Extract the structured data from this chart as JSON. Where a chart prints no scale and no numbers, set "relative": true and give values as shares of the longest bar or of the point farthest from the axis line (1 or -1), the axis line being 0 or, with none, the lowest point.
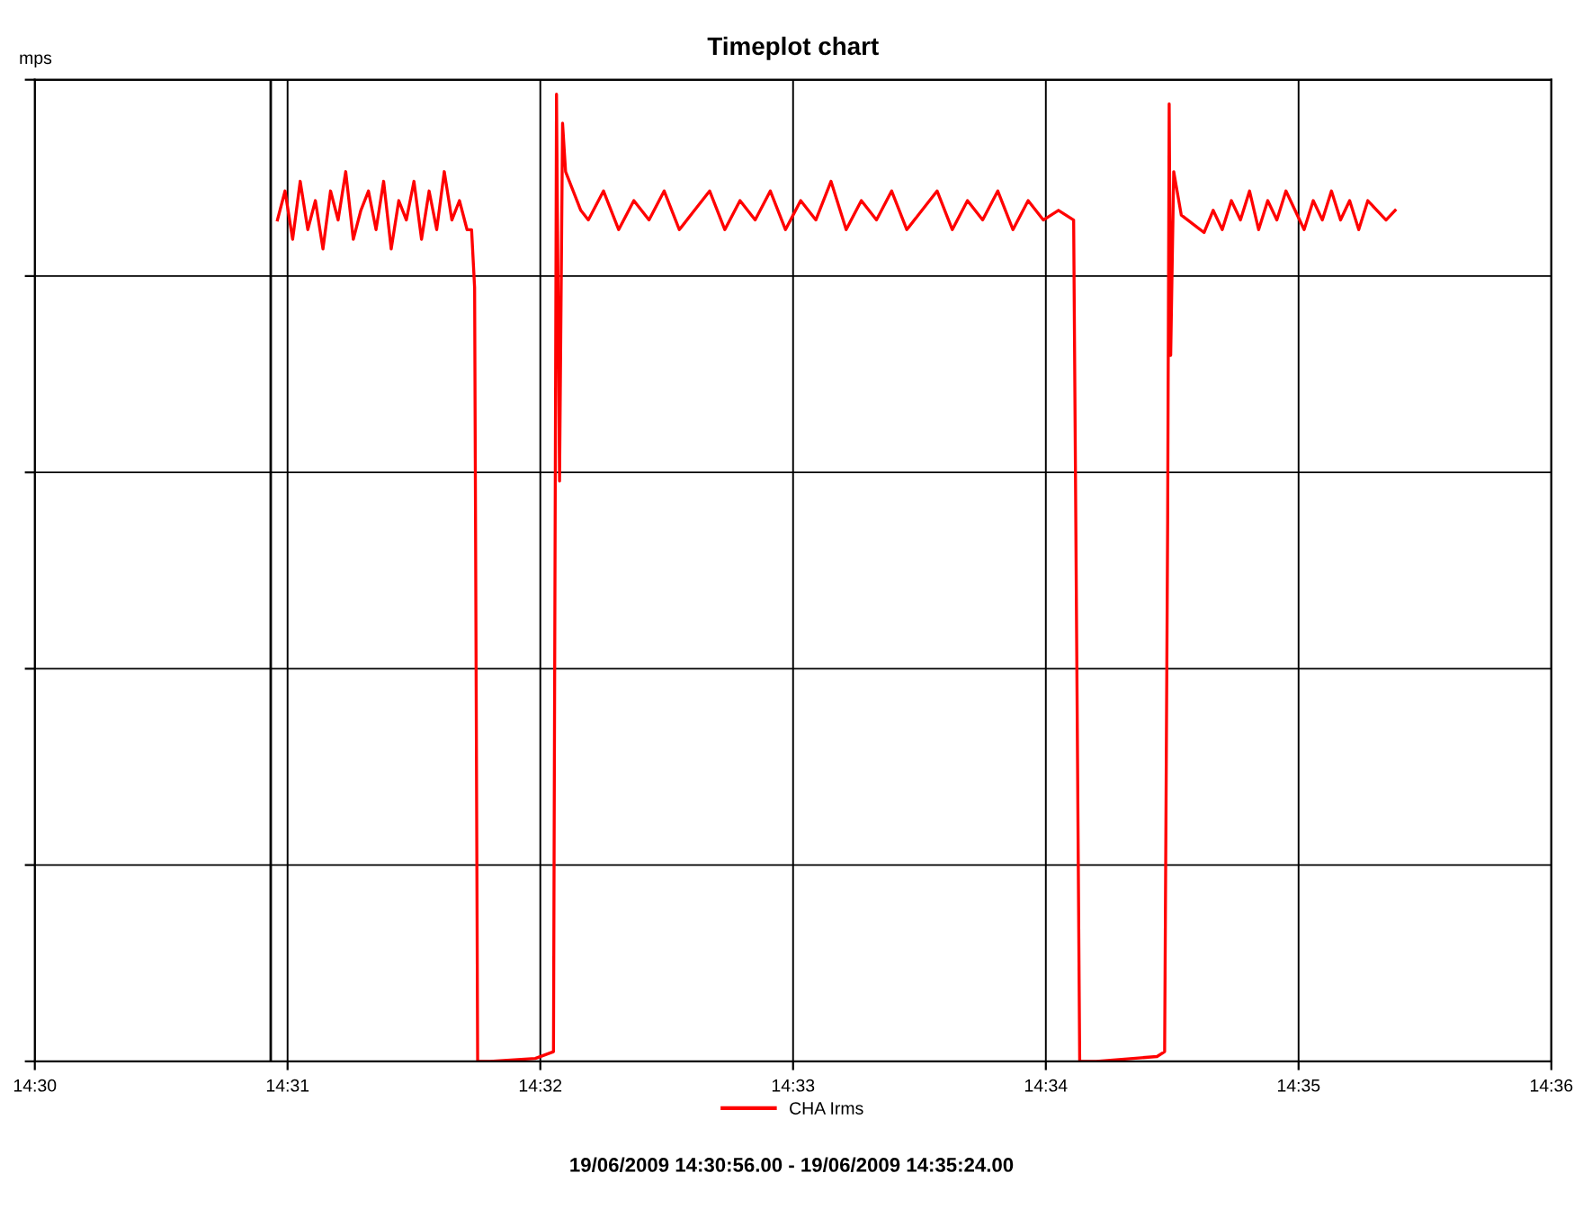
{
  "chart_data": {
    "type": "line",
    "title": "Timeplot chart",
    "ylabel": "mps",
    "relative": true,
    "x": [
      14.516,
      14.5165,
      14.517,
      14.5175,
      14.518,
      14.5185,
      14.519,
      14.5195,
      14.52,
      14.5205,
      14.521,
      14.5215,
      14.522,
      14.5225,
      14.523,
      14.5235,
      14.524,
      14.5245,
      14.525,
      14.5255,
      14.526,
      14.5265,
      14.527,
      14.5275,
      14.528,
      14.5285,
      14.5288,
      14.529,
      14.5292,
      14.53,
      14.533,
      14.5342,
      14.5344,
      14.5346,
      14.5348,
      14.535,
      14.5355,
      14.536,
      14.5365,
      14.5375,
      14.5385,
      14.5395,
      14.5405,
      14.5415,
      14.5425,
      14.5435,
      14.5445,
      14.5455,
      14.5465,
      14.5475,
      14.5485,
      14.5495,
      14.5505,
      14.5515,
      14.5525,
      14.5535,
      14.5545,
      14.5555,
      14.5565,
      14.5575,
      14.5585,
      14.5595,
      14.5605,
      14.5615,
      14.5625,
      14.5635,
      14.5645,
      14.5655,
      14.5665,
      14.5675,
      14.5685,
      14.5689,
      14.5691,
      14.57,
      14.574,
      14.5745,
      14.5747,
      14.5748,
      14.5749,
      14.5751,
      14.5756,
      14.5771,
      14.5777,
      14.5783,
      14.5789,
      14.5795,
      14.5801,
      14.5807,
      14.5813,
      14.5819,
      14.5825,
      14.5831,
      14.5837,
      14.5843,
      14.5849,
      14.5855,
      14.5861,
      14.5867,
      14.5873,
      14.5879,
      14.5885,
      14.5891,
      14.5897
    ],
    "series": [
      {
        "name": "CHA Irms",
        "color": "#ff0000",
        "values": [
          0.87,
          0.9,
          0.85,
          0.91,
          0.86,
          0.89,
          0.84,
          0.9,
          0.87,
          0.92,
          0.85,
          0.88,
          0.9,
          0.86,
          0.91,
          0.84,
          0.89,
          0.87,
          0.91,
          0.85,
          0.9,
          0.86,
          0.92,
          0.87,
          0.89,
          0.86,
          0.86,
          0.8,
          0.0,
          0.0,
          0.003,
          0.01,
          1.0,
          0.6,
          0.97,
          0.92,
          0.9,
          0.88,
          0.87,
          0.9,
          0.86,
          0.89,
          0.87,
          0.9,
          0.86,
          0.88,
          0.9,
          0.86,
          0.89,
          0.87,
          0.9,
          0.86,
          0.89,
          0.87,
          0.91,
          0.86,
          0.89,
          0.87,
          0.9,
          0.86,
          0.88,
          0.9,
          0.86,
          0.89,
          0.87,
          0.9,
          0.86,
          0.89,
          0.87,
          0.88,
          0.87,
          0.0,
          0.0,
          0.0,
          0.005,
          0.01,
          0.56,
          0.99,
          0.73,
          0.92,
          0.875,
          0.857,
          0.88,
          0.86,
          0.89,
          0.87,
          0.9,
          0.86,
          0.89,
          0.87,
          0.9,
          0.88,
          0.86,
          0.89,
          0.87,
          0.9,
          0.87,
          0.89,
          0.86,
          0.89,
          0.88,
          0.87,
          0.88
        ]
      }
    ],
    "xlim": [
      14.5,
      14.6
    ],
    "xticks": [
      {
        "value": 14.5,
        "label": "14:30"
      },
      {
        "value": 14.516667,
        "label": "14:31"
      },
      {
        "value": 14.533333,
        "label": "14:32"
      },
      {
        "value": 14.55,
        "label": "14:33"
      },
      {
        "value": 14.566667,
        "label": "14:34"
      },
      {
        "value": 14.583333,
        "label": "14:35"
      },
      {
        "value": 14.6,
        "label": "14:36"
      }
    ],
    "ref_lines": [
      {
        "axis": "x",
        "value": 14.515556,
        "color": "#000000"
      }
    ],
    "grid": true,
    "legend": "bottom",
    "marker": "none",
    "line_style": "solid",
    "annotations": [
      "19/06/2009 14:30:56.00 - 19/06/2009 14:35:24.00"
    ]
  }
}
